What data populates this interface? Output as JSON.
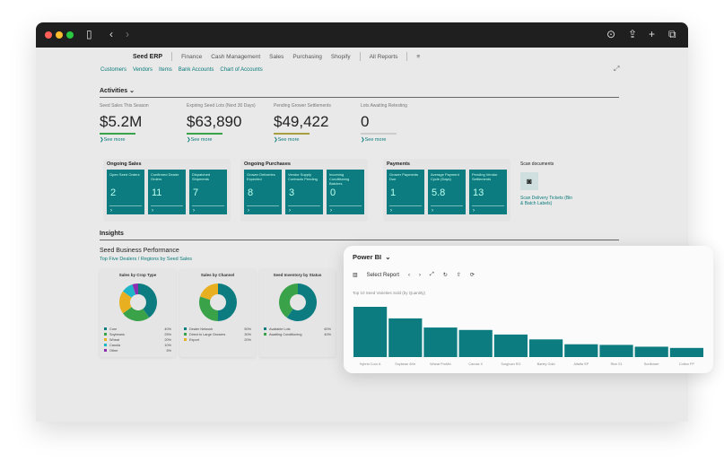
{
  "app": {
    "title": "Seed ERP",
    "menus": [
      "Finance",
      "Cash Management",
      "Sales",
      "Purchasing",
      "Shopify"
    ],
    "all_reports": "All Reports"
  },
  "links": [
    "Customers",
    "Vendors",
    "Items",
    "Bank Accounts",
    "Chart of Accounts"
  ],
  "activities": {
    "title": "Activities",
    "kpis": [
      {
        "label": "Seed Sales This Season",
        "value": "$5.2M",
        "see": "See more",
        "color": "#3aa34a"
      },
      {
        "label": "Expiring Seed Lots (Next 30 Days)",
        "value": "$63,890",
        "see": "See more",
        "color": "#3aa34a"
      },
      {
        "label": "Pending Grower Settlements",
        "value": "$49,422",
        "see": "See more",
        "color": "#a8a040"
      },
      {
        "label": "Lots Awaiting Retesting",
        "value": "0",
        "see": "See more",
        "color": "#cccccc"
      }
    ]
  },
  "groups": [
    {
      "title": "Ongoing Sales",
      "tiles": [
        {
          "t": "Open Seed Orders",
          "n": "2"
        },
        {
          "t": "Confirmed Dealer Orders",
          "n": "11"
        },
        {
          "t": "Dispatched Shipments",
          "n": "7"
        }
      ]
    },
    {
      "title": "Ongoing Purchases",
      "tiles": [
        {
          "t": "Grower Deliveries Expected",
          "n": "8"
        },
        {
          "t": "Vendor Supply Contracts Pending",
          "n": "3"
        },
        {
          "t": "Incoming Conditioning Batches",
          "n": "0"
        }
      ]
    },
    {
      "title": "Payments",
      "tiles": [
        {
          "t": "Grower Payments Due",
          "n": "1"
        },
        {
          "t": "Average Payment Cycle (Days)",
          "n": "5.8"
        },
        {
          "t": "Pending Vendor Settlements",
          "n": "13"
        }
      ]
    }
  ],
  "scan": {
    "title": "Scan documents",
    "link": "Scan Delivery Tickets (Bin & Batch Labels)"
  },
  "insights": {
    "title": "Insights",
    "subtitle": "Seed Business Performance",
    "link": "Top Five Dealers / Regions by Seed Sales"
  },
  "donuts": [
    {
      "title": "Sales by Crop Type",
      "items": [
        {
          "n": "Corn",
          "p": "40%",
          "v": 40,
          "c": "#0c7c80"
        },
        {
          "n": "Soybeans",
          "p": "25%",
          "v": 25,
          "c": "#3aa34a"
        },
        {
          "n": "Wheat",
          "p": "20%",
          "v": 20,
          "c": "#e8b020"
        },
        {
          "n": "Canola",
          "p": "10%",
          "v": 10,
          "c": "#1fb5c8"
        },
        {
          "n": "Other",
          "p": "5%",
          "v": 5,
          "c": "#8a2fb0"
        }
      ]
    },
    {
      "title": "Sales by Channel",
      "items": [
        {
          "n": "Dealer Network",
          "p": "50%",
          "v": 50,
          "c": "#0c7c80"
        },
        {
          "n": "Direct to Large Growers",
          "p": "30%",
          "v": 30,
          "c": "#3aa34a"
        },
        {
          "n": "Export",
          "p": "20%",
          "v": 20,
          "c": "#e8b020"
        }
      ]
    },
    {
      "title": "Seed Inventory by Status",
      "items": [
        {
          "n": "Available Lots",
          "p": "60%",
          "v": 60,
          "c": "#0c7c80"
        },
        {
          "n": "Awaiting Conditioning",
          "p": "40%",
          "v": 40,
          "c": "#3aa34a"
        }
      ]
    }
  ],
  "powerbi": {
    "title": "Power BI",
    "select": "Select Report"
  },
  "chart_data": {
    "type": "bar",
    "title": "Top 10 Seed Varieties Sold (by Quantity)",
    "categories": [
      "Hybrid Corn A",
      "Soybean 8Xtr",
      "Wheat ProMix",
      "Canola X",
      "Sorghum RG",
      "Barley Gold",
      "Alfalfa SP",
      "Rice 01",
      "Sunflower",
      "Cotton FP"
    ],
    "values": [
      165,
      127,
      97,
      89,
      74,
      58,
      42,
      40,
      34,
      30
    ],
    "color": "#0c7c80",
    "grid": false
  }
}
